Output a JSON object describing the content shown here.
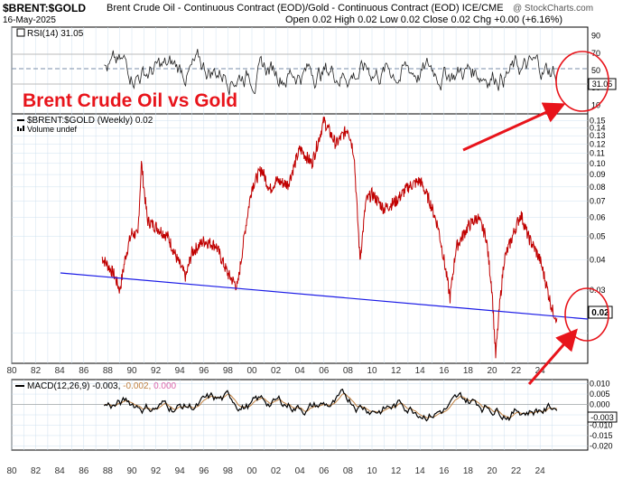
{
  "header": {
    "symbol": "$BRENT:$GOLD",
    "description": "Brent Crude Oil - Continuous Contract (EOD)/Gold - Continuous Contract (EOD) ICE/CME",
    "date": "16-May-2025",
    "ohlc": "Open 0.02  High 0.02  Low 0.02  Close 0.02  Chg +0.00 (+6.16%)",
    "brand": "@ StockCharts.com",
    "brand_icon": "stockcharts-logo-icon"
  },
  "annotation": {
    "title": "Brent Crude Oil vs Gold",
    "color": "#e8141b"
  },
  "rsi_panel": {
    "legend": "RSI(14) 31.05",
    "last_value": "31.05",
    "ticks": [
      "90",
      "70",
      "50",
      "30",
      "10"
    ]
  },
  "price_panel": {
    "legend": "$BRENT:$GOLD (Weekly) 0.02",
    "volume_legend": "Volume undef",
    "last_value": "0.02",
    "ticks": [
      "0.15",
      "0.14",
      "0.13",
      "0.12",
      "0.11",
      "0.10",
      "0.09",
      "0.08",
      "0.07",
      "0.06",
      "0.05",
      "0.04",
      "0.03"
    ]
  },
  "macd_panel": {
    "legend_main": "MACD(12,26,9) -0.003,",
    "legend_signal": "-0.002,",
    "legend_hist": "0.000",
    "last_value": "-0.003",
    "ticks": [
      "0.010",
      "0.005",
      "0.000",
      "-0.005",
      "-0.010",
      "-0.015",
      "-0.020"
    ]
  },
  "x_axis_labels": [
    "80",
    "82",
    "84",
    "86",
    "88",
    "90",
    "92",
    "94",
    "96",
    "98",
    "00",
    "02",
    "04",
    "06",
    "08",
    "10",
    "12",
    "14",
    "16",
    "18",
    "20",
    "22",
    "24"
  ],
  "colors": {
    "price_line": "#c00000",
    "trendline": "#1a1ae6",
    "grid": "#cfe0ef",
    "rsi_line": "#222222",
    "macd_line": "#000000",
    "signal_line": "#c08040"
  },
  "chart_data": [
    {
      "type": "line",
      "title": "$BRENT:$GOLD (Weekly)",
      "y_scale": "log",
      "ylim": [
        0.015,
        0.16
      ],
      "x": [
        1987.5,
        1988.0,
        1988.5,
        1989.0,
        1989.5,
        1990.0,
        1990.5,
        1990.8,
        1991.3,
        1992,
        1993,
        1993.8,
        1994.5,
        1995,
        1996,
        1997,
        1998,
        1998.8,
        1999.5,
        2000,
        2000.8,
        2001.5,
        2002,
        2003,
        2004,
        2005,
        2006,
        2007,
        2008,
        2008.5,
        2009,
        2009.5,
        2010,
        2011,
        2012,
        2013,
        2014,
        2014.8,
        2015.5,
        2016,
        2016.5,
        2017,
        2018,
        2018.8,
        2019.5,
        2020,
        2020.3,
        2020.6,
        2021,
        2022,
        2022.4,
        2023,
        2023.5,
        2024,
        2024.5,
        2025.0,
        2025.4
      ],
      "values": [
        0.041,
        0.038,
        0.035,
        0.03,
        0.042,
        0.052,
        0.05,
        0.1,
        0.058,
        0.055,
        0.05,
        0.04,
        0.034,
        0.043,
        0.048,
        0.046,
        0.035,
        0.031,
        0.056,
        0.08,
        0.095,
        0.078,
        0.085,
        0.082,
        0.115,
        0.1,
        0.15,
        0.12,
        0.14,
        0.11,
        0.04,
        0.07,
        0.075,
        0.065,
        0.07,
        0.08,
        0.085,
        0.07,
        0.055,
        0.04,
        0.028,
        0.045,
        0.055,
        0.06,
        0.05,
        0.03,
        0.016,
        0.025,
        0.04,
        0.055,
        0.062,
        0.05,
        0.045,
        0.04,
        0.032,
        0.025,
        0.023
      ],
      "annotations": [
        "Brent Crude Oil vs Gold"
      ]
    },
    {
      "type": "line",
      "title": "RSI(14)",
      "ylim": [
        0,
        100
      ],
      "series": [
        {
          "name": "RSI(14)",
          "last": 31.05
        }
      ]
    },
    {
      "type": "line",
      "title": "MACD(12,26,9)",
      "ylim": [
        -0.022,
        0.012
      ],
      "series": [
        {
          "name": "MACD",
          "last": -0.003
        },
        {
          "name": "Signal",
          "last": -0.002
        },
        {
          "name": "Histogram",
          "last": 0.0
        }
      ]
    }
  ]
}
